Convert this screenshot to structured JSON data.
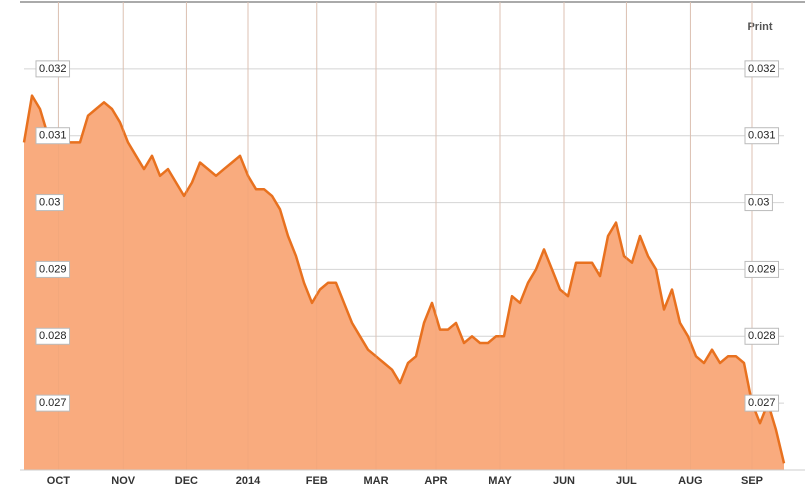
{
  "chart_data": {
    "type": "area",
    "print_label": "Print",
    "x": [
      0,
      1,
      2,
      3,
      4,
      5,
      6,
      7,
      8,
      9,
      10,
      11,
      12,
      13,
      14,
      15,
      16,
      17,
      18,
      19,
      20,
      21,
      22,
      23,
      24,
      25,
      26,
      27,
      28,
      29,
      30,
      31,
      32,
      33,
      34,
      35,
      36,
      37,
      38,
      39,
      40,
      41,
      42,
      43,
      44,
      45,
      46,
      47,
      48,
      49,
      50,
      51,
      52,
      53,
      54,
      55,
      56,
      57,
      58,
      59,
      60,
      61,
      62,
      63,
      64,
      65,
      66,
      67,
      68,
      69,
      70,
      71,
      72,
      73,
      74,
      75,
      76,
      77,
      78,
      79,
      80,
      81,
      82,
      83,
      84,
      85,
      86,
      87,
      88,
      89,
      90,
      91,
      92,
      93,
      94,
      95
    ],
    "series": [
      {
        "color": "#e8711f",
        "fill": "#f9ab7e",
        "values": [
          0.0309,
          0.0316,
          0.0314,
          0.031,
          0.0309,
          0.0309,
          0.0309,
          0.0309,
          0.0313,
          0.0314,
          0.0315,
          0.0314,
          0.0312,
          0.0309,
          0.0307,
          0.0305,
          0.0307,
          0.0304,
          0.0305,
          0.0303,
          0.0301,
          0.0303,
          0.0306,
          0.0305,
          0.0304,
          0.0305,
          0.0306,
          0.0307,
          0.0304,
          0.0302,
          0.0302,
          0.0301,
          0.0299,
          0.0295,
          0.0292,
          0.0288,
          0.0285,
          0.0287,
          0.0288,
          0.0288,
          0.0285,
          0.0282,
          0.028,
          0.0278,
          0.0277,
          0.0276,
          0.0275,
          0.0273,
          0.0276,
          0.0277,
          0.0282,
          0.0285,
          0.0281,
          0.0281,
          0.0282,
          0.0279,
          0.028,
          0.0279,
          0.0279,
          0.028,
          0.028,
          0.0286,
          0.0285,
          0.0288,
          0.029,
          0.0293,
          0.029,
          0.0287,
          0.0286,
          0.0291,
          0.0291,
          0.0291,
          0.0289,
          0.0295,
          0.0297,
          0.0292,
          0.0291,
          0.0295,
          0.0292,
          0.029,
          0.0284,
          0.0287,
          0.0282,
          0.028,
          0.0277,
          0.0276,
          0.0278,
          0.0276,
          0.0277,
          0.0277,
          0.0276,
          0.027,
          0.0267,
          0.027,
          0.0266,
          0.0261
        ]
      }
    ],
    "xlim": [
      0,
      95
    ],
    "xticks": [
      {
        "value": 4.3,
        "label": "OCT"
      },
      {
        "value": 12.4,
        "label": "NOV"
      },
      {
        "value": 20.3,
        "label": "DEC"
      },
      {
        "value": 28,
        "label": "2014"
      },
      {
        "value": 36.6,
        "label": "FEB"
      },
      {
        "value": 44,
        "label": "MAR"
      },
      {
        "value": 51.5,
        "label": "APR"
      },
      {
        "value": 59.5,
        "label": "MAY"
      },
      {
        "value": 67.5,
        "label": "JUN"
      },
      {
        "value": 75.3,
        "label": "JUL"
      },
      {
        "value": 83.3,
        "label": "AUG"
      },
      {
        "value": 91,
        "label": "SEP"
      }
    ],
    "ylim": [
      0.026,
      0.033
    ],
    "yticks": [
      0.027,
      0.028,
      0.029,
      0.03,
      0.031,
      0.032
    ],
    "grid": true
  }
}
